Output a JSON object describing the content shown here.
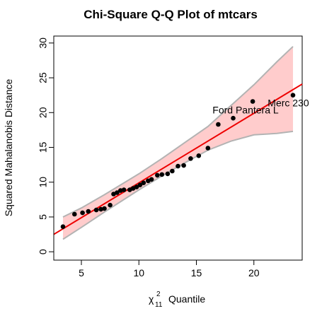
{
  "chart_data": {
    "type": "scatter",
    "title": "Chi-Square Q-Q Plot of mtcars",
    "xlabel_symbol": "χ",
    "xlabel_superscript": "2",
    "xlabel_subscript": "11",
    "xlabel_text": "Quantile",
    "ylabel": "Squared Mahalanobis Distance",
    "xlim": [
      2.6,
      24.2
    ],
    "ylim": [
      -1.2,
      31.0
    ],
    "xticks": [
      5,
      10,
      15,
      20
    ],
    "yticks": [
      0,
      5,
      10,
      15,
      20,
      25,
      30
    ],
    "grid": false,
    "points": [
      {
        "x": 3.4,
        "y": 3.6
      },
      {
        "x": 4.4,
        "y": 5.4
      },
      {
        "x": 5.1,
        "y": 5.6
      },
      {
        "x": 5.6,
        "y": 5.8
      },
      {
        "x": 6.3,
        "y": 6.0
      },
      {
        "x": 6.7,
        "y": 6.1
      },
      {
        "x": 7.0,
        "y": 6.2
      },
      {
        "x": 7.5,
        "y": 6.7
      },
      {
        "x": 7.8,
        "y": 8.3
      },
      {
        "x": 8.1,
        "y": 8.5
      },
      {
        "x": 8.4,
        "y": 8.8
      },
      {
        "x": 8.7,
        "y": 8.9
      },
      {
        "x": 9.2,
        "y": 8.9
      },
      {
        "x": 9.5,
        "y": 9.1
      },
      {
        "x": 9.8,
        "y": 9.3
      },
      {
        "x": 10.1,
        "y": 9.6
      },
      {
        "x": 10.4,
        "y": 9.9
      },
      {
        "x": 10.8,
        "y": 10.2
      },
      {
        "x": 11.1,
        "y": 10.4
      },
      {
        "x": 11.6,
        "y": 11.0
      },
      {
        "x": 12.0,
        "y": 11.1
      },
      {
        "x": 12.5,
        "y": 11.2
      },
      {
        "x": 12.9,
        "y": 11.6
      },
      {
        "x": 13.4,
        "y": 12.3
      },
      {
        "x": 13.9,
        "y": 12.4
      },
      {
        "x": 14.5,
        "y": 13.4
      },
      {
        "x": 15.2,
        "y": 13.8
      },
      {
        "x": 16.0,
        "y": 14.9
      },
      {
        "x": 16.9,
        "y": 18.3
      },
      {
        "x": 18.2,
        "y": 19.2
      },
      {
        "x": 19.9,
        "y": 21.6
      },
      {
        "x": 23.4,
        "y": 22.5
      }
    ],
    "reference_line": {
      "x": [
        2.6,
        24.2
      ],
      "y": [
        2.5,
        24.1
      ]
    },
    "band_upper": [
      {
        "x": 3.4,
        "y": 5.0
      },
      {
        "x": 5.0,
        "y": 6.3
      },
      {
        "x": 7.0,
        "y": 8.2
      },
      {
        "x": 10.0,
        "y": 11.2
      },
      {
        "x": 12.0,
        "y": 13.4
      },
      {
        "x": 14.0,
        "y": 15.7
      },
      {
        "x": 16.0,
        "y": 18.0
      },
      {
        "x": 18.0,
        "y": 21.0
      },
      {
        "x": 20.0,
        "y": 24.0
      },
      {
        "x": 22.0,
        "y": 27.3
      },
      {
        "x": 23.4,
        "y": 29.5
      }
    ],
    "band_lower": [
      {
        "x": 3.4,
        "y": 1.8
      },
      {
        "x": 5.0,
        "y": 3.5
      },
      {
        "x": 7.0,
        "y": 5.7
      },
      {
        "x": 10.0,
        "y": 8.9
      },
      {
        "x": 12.0,
        "y": 10.9
      },
      {
        "x": 14.0,
        "y": 12.8
      },
      {
        "x": 16.0,
        "y": 14.6
      },
      {
        "x": 18.0,
        "y": 15.9
      },
      {
        "x": 20.0,
        "y": 16.8
      },
      {
        "x": 22.0,
        "y": 17.0
      },
      {
        "x": 23.4,
        "y": 17.3
      }
    ],
    "annotations": [
      {
        "text": "Ford Pantera L",
        "x": 16.4,
        "y": 19.9
      },
      {
        "text": "Merc 230",
        "x": 21.2,
        "y": 20.9
      }
    ],
    "colors": {
      "band_fill": "#ffcccc",
      "band_border": "#b3b3b3",
      "line": "#ee0000",
      "points": "#000000",
      "axes": "#000000"
    }
  }
}
